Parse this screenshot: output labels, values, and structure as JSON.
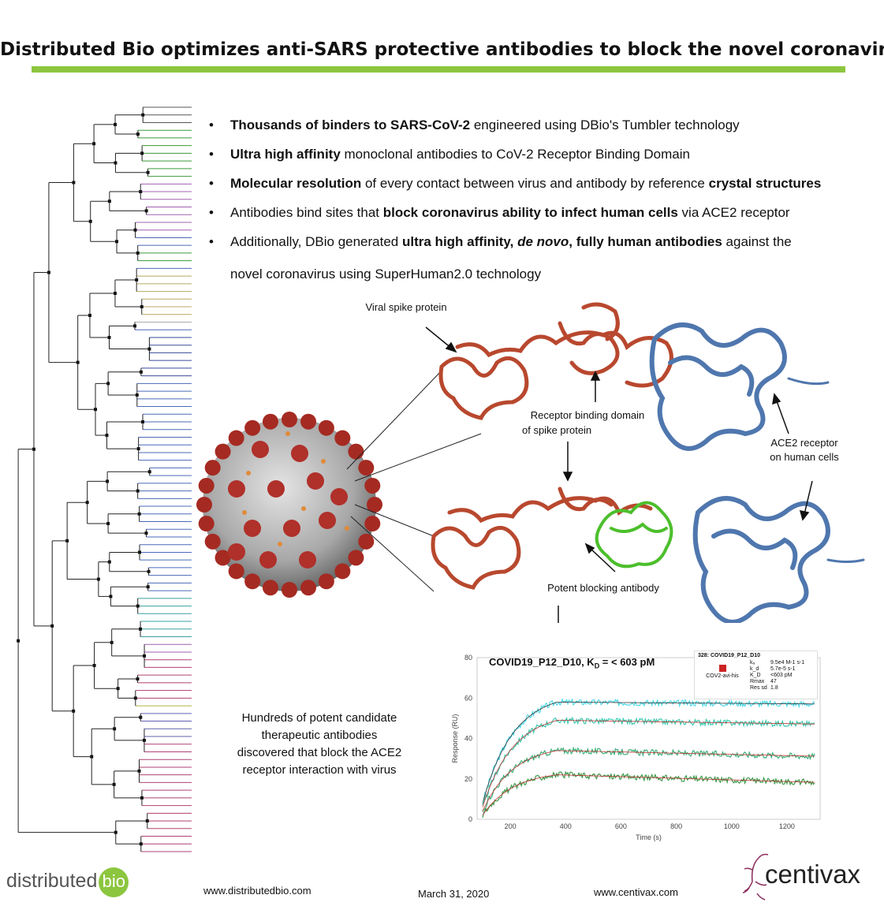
{
  "title": "Distributed Bio optimizes anti-SARS protective antibodies to block the novel coronavirus",
  "bullets": [
    {
      "parts": [
        {
          "t": "Thousands of binders to SARS-CoV-2",
          "b": true
        },
        {
          "t": " engineered using DBio's Tumbler technology",
          "b": false
        }
      ]
    },
    {
      "parts": [
        {
          "t": "Ultra high affinity",
          "b": true
        },
        {
          "t": " monoclonal antibodies to CoV-2 Receptor Binding Domain",
          "b": false
        }
      ]
    },
    {
      "parts": [
        {
          "t": "Molecular resolution",
          "b": true
        },
        {
          "t": " of every contact between virus and antibody by reference ",
          "b": false
        },
        {
          "t": "crystal structures",
          "b": true
        }
      ]
    },
    {
      "parts": [
        {
          "t": "Antibodies bind sites that ",
          "b": false
        },
        {
          "t": "block coronavirus ability to infect human cells",
          "b": true
        },
        {
          "t": " via ACE2 receptor",
          "b": false
        }
      ]
    },
    {
      "parts": [
        {
          "t": "Additionally, DBio generated ",
          "b": false
        },
        {
          "t": "ultra high affinity, ",
          "b": true
        },
        {
          "t": "de novo",
          "b": true,
          "i": true
        },
        {
          "t": ", fully human antibodies",
          "b": true
        },
        {
          "t": " against the",
          "b": false
        }
      ]
    }
  ],
  "bullet_continuation": "novel coronavirus using SuperHuman2.0 technology",
  "labels": {
    "viral_spike": "Viral spike protein",
    "rbd_line1": "Receptor binding domain",
    "rbd_line2": "of spike protein",
    "ace2_line1": "ACE2 receptor",
    "ace2_line2": "on human cells",
    "antibody": "Potent blocking antibody"
  },
  "bottom_text": [
    "Hundreds of potent candidate",
    "therapeutic antibodies",
    "discovered that block the ACE2",
    "receptor interaction with virus"
  ],
  "chart_data": {
    "type": "line",
    "title": "COVID19_P12_D10,  K",
    "title_sub": "D",
    "title_tail": " = < 603 pM",
    "xlabel": "Time (s)",
    "ylabel": "Response (RU)",
    "xlim": [
      80,
      1320
    ],
    "ylim": [
      0,
      80
    ],
    "xticks": [
      200,
      400,
      600,
      800,
      1000,
      1200
    ],
    "yticks": [
      0,
      20,
      40,
      60,
      80
    ],
    "association_end": 370,
    "series": [
      {
        "color": "#4dd9e6",
        "plateau": 58,
        "start": 8
      },
      {
        "color": "#3bc9b0",
        "plateau": 49,
        "start": 6
      },
      {
        "color": "#3ab07a",
        "plateau": 34,
        "start": 4
      },
      {
        "color": "#3a9a4a",
        "plateau": 22,
        "start": 2
      }
    ],
    "legend": {
      "header": "328:  COVID19_P12_D10",
      "entry": "COV2-avi-his",
      "params": [
        [
          "kₐ",
          "9.5e4 M-1 s-1"
        ],
        [
          "k_d",
          "5.7e-5 s-1"
        ],
        [
          "K_D",
          "<603 pM"
        ],
        [
          "Rmax",
          "47"
        ],
        [
          "Res sd",
          "1.8"
        ]
      ]
    },
    "legend_color": "#cc2222"
  },
  "footer": {
    "url1": "www.distributedbio.com",
    "date": "March 31, 2020",
    "url2": "www.centivax.com"
  },
  "logos": {
    "db_text": "distributed",
    "db_bio": "bio",
    "centivax": "centivax"
  },
  "colors": {
    "title_rule": "#8cc63f",
    "spike": "#c8553c",
    "ace2": "#5a82b8",
    "antibody": "#5cc83a"
  }
}
